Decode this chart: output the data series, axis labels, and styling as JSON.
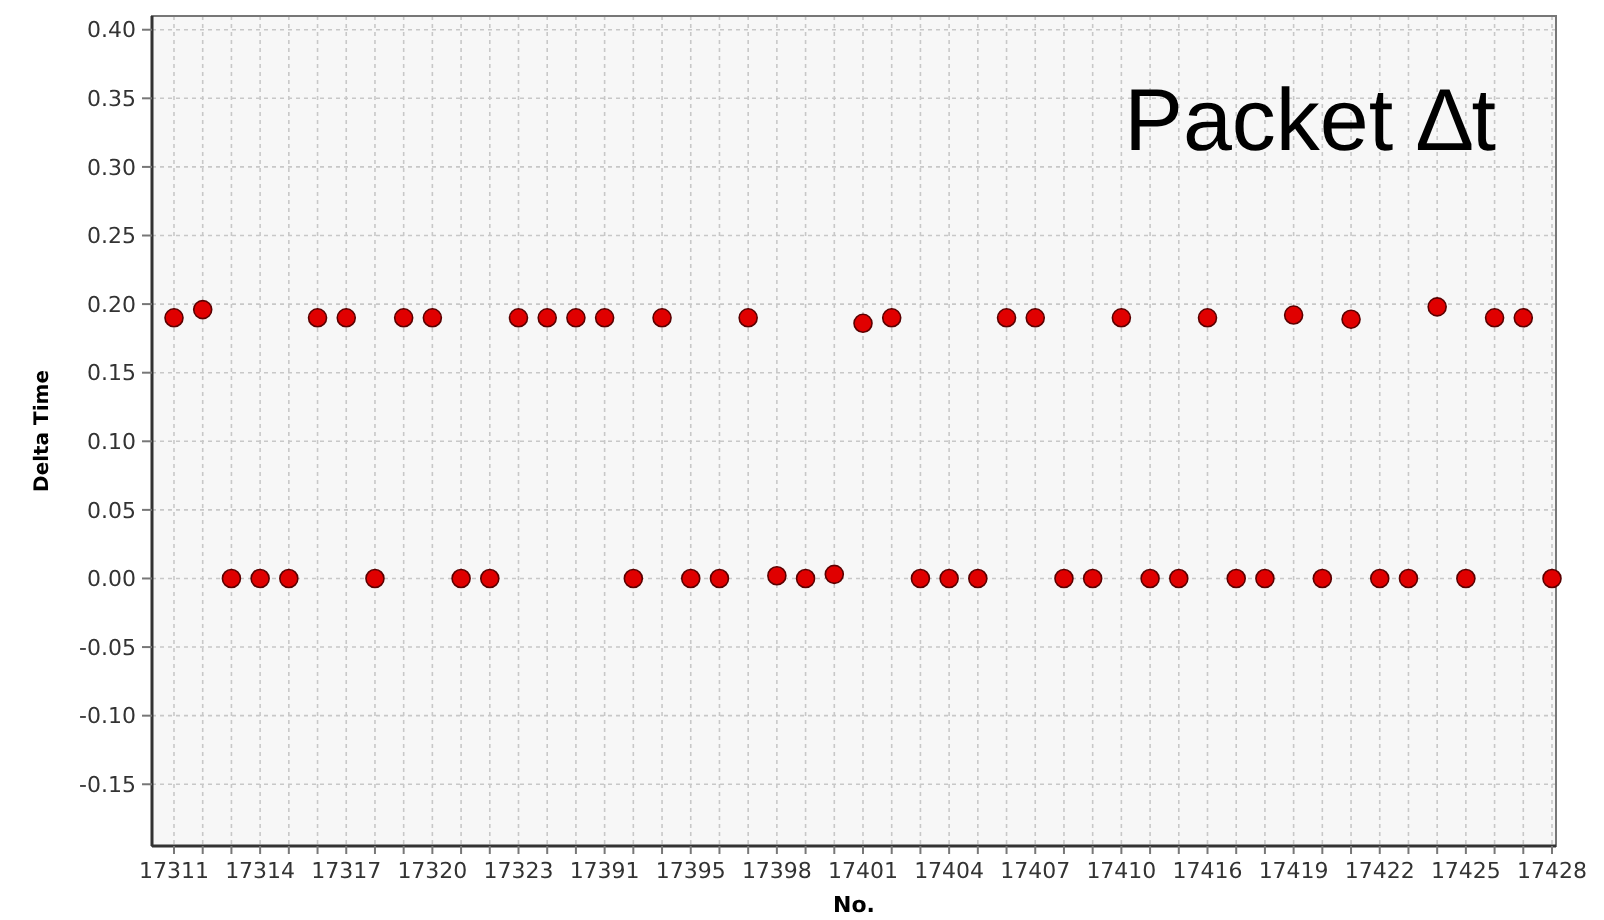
{
  "chart_data": {
    "type": "scatter",
    "title": "Packet ∆t",
    "xlabel": "No.",
    "ylabel": "Delta Time",
    "categories": [
      "17311",
      null,
      null,
      "17314",
      null,
      null,
      "17317",
      null,
      null,
      "17320",
      null,
      null,
      "17323",
      null,
      null,
      "17391",
      null,
      null,
      "17395",
      null,
      null,
      "17398",
      null,
      null,
      "17401",
      null,
      null,
      "17404",
      null,
      null,
      "17407",
      null,
      null,
      "17410",
      null,
      null,
      "17416",
      null,
      null,
      "17419",
      null,
      null,
      "17422",
      null,
      null,
      "17425",
      null,
      null,
      "17428"
    ],
    "series": [
      {
        "color": "#e00000",
        "values": [
          0.19,
          0.196,
          0,
          0,
          0,
          0.19,
          0.19,
          0,
          0.19,
          0.19,
          0,
          0,
          0.19,
          0.19,
          0.19,
          0.19,
          0,
          0.19,
          0,
          0,
          0.19,
          0.002,
          0,
          0.003,
          0.186,
          0.19,
          0,
          0,
          0,
          0.19,
          0.19,
          0,
          0,
          0.19,
          0,
          0,
          0.19,
          0,
          0,
          0.192,
          0,
          0.189,
          0,
          0,
          0.198,
          0,
          0.19,
          0.19,
          0
        ]
      }
    ],
    "ylim": [
      -0.195,
      0.41
    ],
    "yticks": [
      {
        "value": -0.15,
        "label": "-0.15"
      },
      {
        "value": -0.1,
        "label": "-0.10"
      },
      {
        "value": -0.05,
        "label": "-0.05"
      },
      {
        "value": 0,
        "label": "0.00"
      },
      {
        "value": 0.05,
        "label": "0.05"
      },
      {
        "value": 0.1,
        "label": "0.10"
      },
      {
        "value": 0.15,
        "label": "0.15"
      },
      {
        "value": 0.2,
        "label": "0.20"
      },
      {
        "value": 0.25,
        "label": "0.25"
      },
      {
        "value": 0.3,
        "label": "0.30"
      },
      {
        "value": 0.35,
        "label": "0.35"
      },
      {
        "value": 0.4,
        "label": "0.40"
      }
    ],
    "grid": true,
    "marker": "circle"
  }
}
